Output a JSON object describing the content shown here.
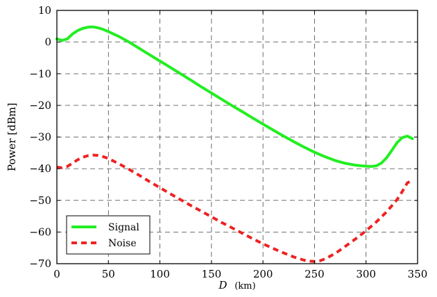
{
  "chart_data": {
    "type": "line",
    "xlabel_var": "D",
    "xlabel_unit": "(km)",
    "ylabel": "Power [dBm]",
    "xlim": [
      0,
      350
    ],
    "ylim": [
      -70,
      10
    ],
    "xticks": [
      0,
      50,
      100,
      150,
      200,
      250,
      300,
      350
    ],
    "yticks": [
      10,
      0,
      -10,
      -20,
      -30,
      -40,
      -50,
      -60,
      -70
    ],
    "grid": true,
    "legend_position": "bottom-left",
    "series": [
      {
        "name": "Signal",
        "color": "#22ee22",
        "style": "solid",
        "x": [
          0,
          5,
          10,
          15,
          20,
          25,
          30,
          35,
          40,
          45,
          50,
          60,
          70,
          80,
          90,
          100,
          110,
          120,
          130,
          140,
          150,
          160,
          170,
          180,
          190,
          200,
          210,
          220,
          230,
          240,
          250,
          260,
          270,
          280,
          290,
          300,
          305,
          310,
          315,
          320,
          325,
          330,
          335,
          340,
          345
        ],
        "y": [
          1,
          0.5,
          1,
          2.5,
          3.6,
          4.3,
          4.7,
          4.8,
          4.5,
          4,
          3.3,
          1.8,
          0,
          -2,
          -4,
          -6,
          -8,
          -10,
          -12,
          -14.1,
          -16.1,
          -18.1,
          -20.1,
          -22,
          -24,
          -25.9,
          -27.8,
          -29.7,
          -31.5,
          -33.2,
          -34.8,
          -36.2,
          -37.4,
          -38.3,
          -38.9,
          -39.2,
          -39.3,
          -39.1,
          -38.2,
          -36.5,
          -34.2,
          -31.8,
          -30.2,
          -29.7,
          -30.5
        ]
      },
      {
        "name": "Noise",
        "color": "#ee2222",
        "style": "dashed",
        "x": [
          0,
          5,
          10,
          15,
          20,
          25,
          30,
          35,
          40,
          45,
          50,
          60,
          70,
          80,
          90,
          100,
          110,
          120,
          130,
          140,
          150,
          160,
          170,
          180,
          190,
          200,
          210,
          220,
          230,
          240,
          245,
          250,
          255,
          260,
          270,
          280,
          290,
          300,
          310,
          320,
          330,
          335,
          340,
          345
        ],
        "y": [
          -39.5,
          -39.7,
          -39.3,
          -38.3,
          -37.2,
          -36.4,
          -35.9,
          -35.7,
          -35.8,
          -36.2,
          -36.8,
          -38.4,
          -40.2,
          -42.1,
          -44.1,
          -46,
          -47.9,
          -49.8,
          -51.6,
          -53.4,
          -55.2,
          -57,
          -58.7,
          -60.4,
          -62.1,
          -63.7,
          -65.2,
          -66.6,
          -67.9,
          -68.9,
          -69.2,
          -69.3,
          -69.1,
          -68.5,
          -66.8,
          -64.5,
          -62.1,
          -59.6,
          -56.8,
          -53.6,
          -49.8,
          -47.3,
          -44.5,
          -43.5
        ]
      }
    ]
  }
}
